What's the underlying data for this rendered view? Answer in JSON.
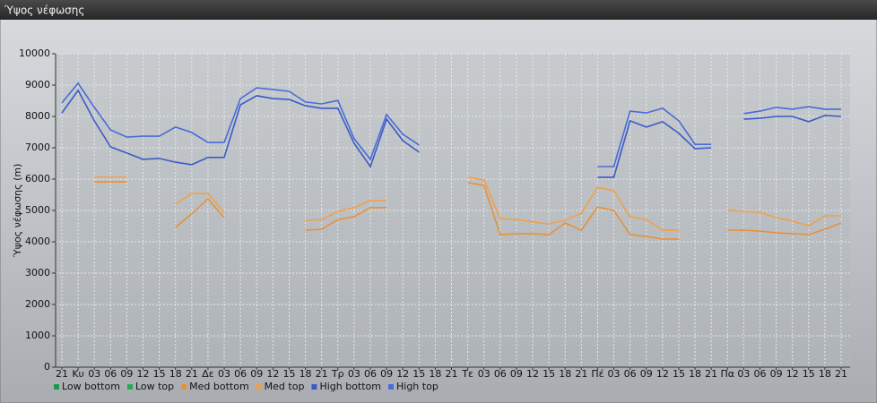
{
  "chart_data": {
    "type": "line",
    "title": "Ύψος νέφωσης",
    "ylabel": "Ύψος νέφωσης (m)",
    "categories": [
      "21",
      "Κυ",
      "03",
      "06",
      "09",
      "12",
      "15",
      "18",
      "21",
      "Δε",
      "03",
      "06",
      "09",
      "12",
      "15",
      "18",
      "21",
      "Τρ",
      "03",
      "06",
      "09",
      "12",
      "15",
      "18",
      "21",
      "Τε",
      "03",
      "06",
      "09",
      "12",
      "15",
      "18",
      "21",
      "Πέ",
      "03",
      "06",
      "09",
      "12",
      "15",
      "18",
      "21",
      "Πα",
      "03",
      "06",
      "09",
      "12",
      "15",
      "18",
      "21"
    ],
    "series": [
      {
        "name": "Low bottom",
        "color": "#1a9a4a",
        "values": [
          null,
          null,
          null,
          null,
          null,
          null,
          null,
          null,
          null,
          null,
          null,
          null,
          null,
          null,
          null,
          null,
          null,
          null,
          null,
          null,
          null,
          null,
          null,
          null,
          null,
          null,
          null,
          null,
          null,
          null,
          null,
          null,
          null,
          null,
          null,
          null,
          null,
          null,
          null,
          null,
          null,
          null,
          null,
          null,
          null,
          null,
          null,
          null,
          null
        ]
      },
      {
        "name": "Low top",
        "color": "#2aa85a",
        "values": [
          null,
          null,
          null,
          null,
          null,
          null,
          null,
          null,
          null,
          null,
          null,
          null,
          null,
          null,
          null,
          null,
          null,
          null,
          null,
          null,
          null,
          null,
          null,
          null,
          null,
          null,
          null,
          null,
          null,
          null,
          null,
          null,
          null,
          null,
          null,
          null,
          null,
          null,
          null,
          null,
          null,
          null,
          null,
          null,
          null,
          null,
          null,
          null,
          null
        ]
      },
      {
        "name": "Med bottom",
        "color": "#e8913a",
        "values": [
          null,
          null,
          5910,
          5910,
          5910,
          null,
          null,
          4460,
          4890,
          5370,
          4770,
          null,
          null,
          null,
          null,
          4370,
          4400,
          4710,
          4800,
          5090,
          5090,
          null,
          null,
          null,
          null,
          5890,
          5800,
          4230,
          4260,
          4260,
          4230,
          4600,
          4370,
          5110,
          5000,
          4230,
          4170,
          4090,
          4090,
          null,
          null,
          4370,
          4370,
          4340,
          4290,
          4260,
          4230,
          4400,
          4600
        ]
      },
      {
        "name": "Med top",
        "color": "#f0a04b",
        "values": [
          null,
          null,
          6060,
          6060,
          6060,
          null,
          null,
          5200,
          5540,
          5540,
          4940,
          null,
          null,
          null,
          null,
          4690,
          4710,
          4970,
          5090,
          5310,
          5310,
          null,
          null,
          null,
          null,
          6060,
          5970,
          4740,
          4710,
          4630,
          4570,
          4690,
          4910,
          5740,
          5630,
          4800,
          4710,
          4370,
          4370,
          null,
          null,
          5000,
          4970,
          4940,
          4770,
          4660,
          4510,
          4830,
          4830
        ]
      },
      {
        "name": "High bottom",
        "color": "#3a5bc7",
        "values": [
          8110,
          8830,
          7860,
          7030,
          6830,
          6630,
          6660,
          6540,
          6460,
          6690,
          6690,
          8370,
          8660,
          8570,
          8540,
          8340,
          8260,
          8260,
          7140,
          6400,
          7910,
          7230,
          6860,
          null,
          null,
          null,
          null,
          null,
          null,
          null,
          null,
          null,
          null,
          6060,
          6060,
          7860,
          7660,
          7830,
          7460,
          6970,
          7000,
          null,
          7910,
          7940,
          8000,
          8000,
          7830,
          8030,
          8000
        ]
      },
      {
        "name": "High top",
        "color": "#4a6bd8",
        "values": [
          8430,
          9060,
          8290,
          7570,
          7340,
          7370,
          7370,
          7660,
          7490,
          7170,
          7170,
          8570,
          8910,
          8860,
          8800,
          8460,
          8400,
          8510,
          7290,
          6630,
          8060,
          7430,
          7090,
          null,
          null,
          null,
          null,
          null,
          null,
          null,
          null,
          null,
          null,
          6400,
          6400,
          8170,
          8110,
          8260,
          7860,
          7110,
          7110,
          null,
          8090,
          8170,
          8290,
          8230,
          8310,
          8230,
          8230
        ]
      }
    ],
    "ylim": [
      0,
      10000
    ],
    "yticks": [
      0,
      1000,
      2000,
      3000,
      4000,
      5000,
      6000,
      7000,
      8000,
      9000,
      10000
    ],
    "grid": true
  }
}
